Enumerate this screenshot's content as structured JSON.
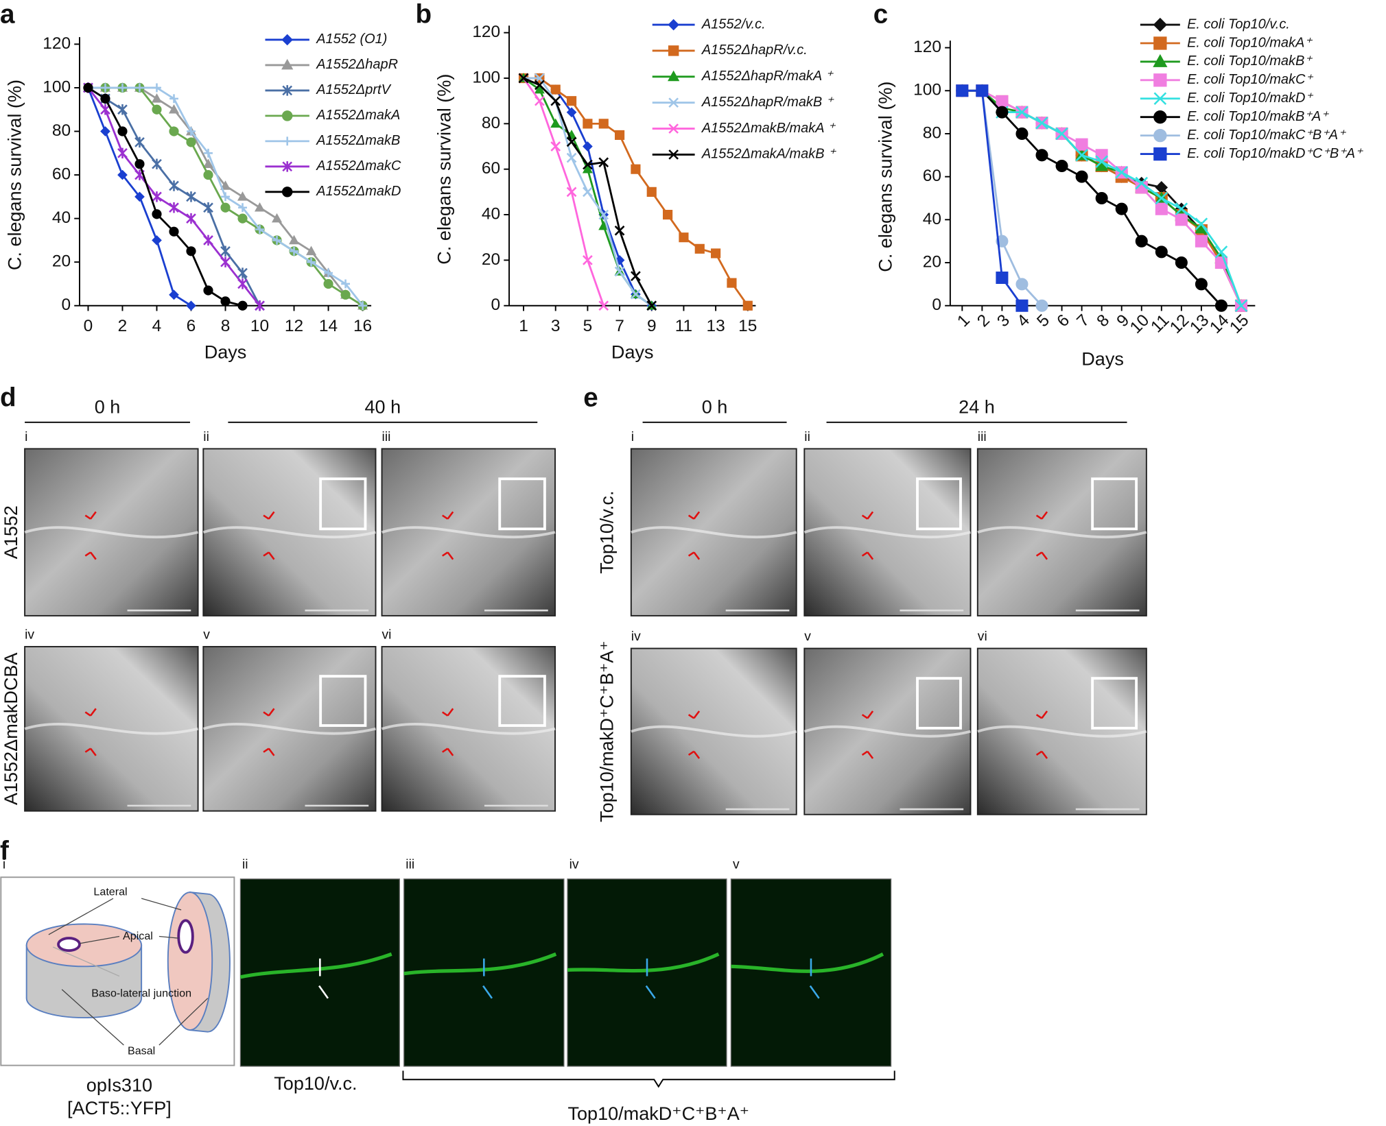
{
  "chart_data": [
    {
      "type": "line",
      "label": "a",
      "xlabel": "Days",
      "ylabel": "C. elegans survival (%)",
      "xlim": [
        -0.5,
        16.5
      ],
      "ylim": [
        0,
        120
      ],
      "xticks": [
        0,
        2,
        4,
        6,
        8,
        10,
        12,
        14,
        16
      ],
      "yticks": [
        0,
        20,
        40,
        60,
        80,
        100,
        120
      ],
      "series": [
        {
          "name": "A1552 (O1)",
          "color": "#1a3fd0",
          "marker": "diamond",
          "x": [
            0,
            1,
            2,
            3,
            4,
            5,
            6
          ],
          "values": [
            100,
            80,
            60,
            50,
            30,
            5,
            0
          ]
        },
        {
          "name": "A1552ΔhapR",
          "color": "#999999",
          "marker": "triangle",
          "x": [
            0,
            1,
            2,
            3,
            4,
            5,
            6,
            7,
            8,
            9,
            10,
            11,
            12,
            13,
            14,
            15,
            16
          ],
          "values": [
            100,
            100,
            100,
            100,
            95,
            90,
            80,
            65,
            55,
            50,
            45,
            40,
            30,
            25,
            15,
            5,
            0
          ]
        },
        {
          "name": "A1552ΔprtV",
          "color": "#4a6fa5",
          "marker": "star",
          "x": [
            0,
            1,
            2,
            3,
            4,
            5,
            6,
            7,
            8,
            9,
            10
          ],
          "values": [
            100,
            95,
            90,
            75,
            65,
            55,
            50,
            45,
            25,
            15,
            0
          ]
        },
        {
          "name": "A1552ΔmakA",
          "color": "#6aa84f",
          "marker": "circle",
          "x": [
            0,
            1,
            2,
            3,
            4,
            5,
            6,
            7,
            8,
            9,
            10,
            11,
            12,
            13,
            14,
            15,
            16
          ],
          "values": [
            100,
            100,
            100,
            100,
            90,
            80,
            75,
            60,
            45,
            40,
            35,
            30,
            25,
            20,
            10,
            5,
            0
          ]
        },
        {
          "name": "A1552ΔmakB",
          "color": "#9fc5e8",
          "marker": "plus",
          "x": [
            0,
            1,
            2,
            3,
            4,
            5,
            6,
            7,
            8,
            9,
            10,
            11,
            12,
            13,
            14,
            15,
            16
          ],
          "values": [
            100,
            100,
            100,
            100,
            100,
            95,
            80,
            70,
            50,
            45,
            35,
            30,
            25,
            20,
            15,
            10,
            0
          ]
        },
        {
          "name": "A1552ΔmakC",
          "color": "#9b30d0",
          "marker": "star",
          "x": [
            0,
            1,
            2,
            3,
            4,
            5,
            6,
            7,
            8,
            9,
            10
          ],
          "values": [
            100,
            90,
            70,
            60,
            50,
            45,
            40,
            30,
            20,
            10,
            0
          ]
        },
        {
          "name": "A1552ΔmakD",
          "color": "#000000",
          "marker": "circle",
          "x": [
            0,
            1,
            2,
            3,
            4,
            5,
            6,
            7,
            8,
            9
          ],
          "values": [
            100,
            95,
            80,
            65,
            42,
            34,
            25,
            7,
            2,
            0
          ]
        }
      ]
    },
    {
      "type": "line",
      "label": "b",
      "xlabel": "Days",
      "ylabel": "C. elegans survival (%)",
      "xlim": [
        0.1,
        15.5
      ],
      "ylim": [
        0,
        120
      ],
      "xticks": [
        1,
        3,
        5,
        7,
        9,
        11,
        13,
        15
      ],
      "yticks": [
        0,
        20,
        40,
        60,
        80,
        100,
        120
      ],
      "series": [
        {
          "name": "A1552/v.c.",
          "color": "#1a3fd0",
          "marker": "diamond",
          "x": [
            1,
            2,
            3,
            4,
            5,
            6,
            7,
            8,
            9
          ],
          "values": [
            100,
            100,
            95,
            85,
            70,
            40,
            20,
            5,
            0
          ]
        },
        {
          "name": "A1552ΔhapR/v.c.",
          "color": "#d2691e",
          "marker": "square",
          "x": [
            1,
            2,
            3,
            4,
            5,
            6,
            7,
            8,
            9,
            10,
            11,
            12,
            13,
            14,
            15
          ],
          "values": [
            100,
            100,
            95,
            90,
            80,
            80,
            75,
            60,
            50,
            40,
            30,
            25,
            23,
            10,
            0
          ]
        },
        {
          "name": "A1552ΔhapR/makA ⁺",
          "color": "#1e9a1e",
          "marker": "triangle",
          "x": [
            1,
            2,
            3,
            4,
            5,
            6,
            7,
            8,
            9
          ],
          "values": [
            100,
            95,
            80,
            75,
            60,
            35,
            15,
            5,
            0
          ]
        },
        {
          "name": "A1552ΔhapR/makB ⁺",
          "color": "#9fc5e8",
          "marker": "x",
          "x": [
            1,
            2,
            3,
            4,
            5,
            6,
            7,
            8,
            9
          ],
          "values": [
            100,
            100,
            90,
            65,
            50,
            40,
            15,
            5,
            0
          ]
        },
        {
          "name": "A1552ΔmakB/makA ⁺",
          "color": "#ff66dd",
          "marker": "x",
          "x": [
            1,
            2,
            3,
            4,
            5,
            6
          ],
          "values": [
            100,
            90,
            70,
            50,
            20,
            0
          ]
        },
        {
          "name": "A1552ΔmakA/makB ⁺",
          "color": "#000000",
          "marker": "x",
          "x": [
            1,
            2,
            3,
            4,
            5,
            6,
            7,
            8,
            9
          ],
          "values": [
            100,
            97,
            90,
            72,
            62,
            63,
            33,
            13,
            0
          ]
        }
      ]
    },
    {
      "type": "line",
      "label": "c",
      "xlabel": "Days",
      "ylabel": "C. elegans survival (%)",
      "xtick_rotation": -45,
      "xlim": [
        0.4,
        15.7
      ],
      "ylim": [
        0,
        120
      ],
      "xticks": [
        1,
        2,
        3,
        4,
        5,
        6,
        7,
        8,
        9,
        10,
        11,
        12,
        13,
        14,
        15
      ],
      "yticks": [
        0,
        20,
        40,
        60,
        80,
        100,
        120
      ],
      "series": [
        {
          "name": "E. coli Top10/v.c.",
          "color": "#111111",
          "marker": "diamond",
          "x": [
            1,
            2,
            3,
            4,
            5,
            6,
            7,
            8,
            9,
            10,
            11,
            12,
            13,
            14,
            15
          ],
          "values": [
            100,
            100,
            90,
            90,
            85,
            80,
            70,
            65,
            60,
            57,
            55,
            45,
            35,
            20,
            0
          ]
        },
        {
          "name": "E. coli Top10/makA⁺",
          "color": "#d2691e",
          "marker": "square",
          "x": [
            1,
            2,
            3,
            4,
            5,
            6,
            7,
            8,
            9,
            10,
            11,
            12,
            13,
            14,
            15
          ],
          "values": [
            100,
            100,
            95,
            90,
            85,
            80,
            70,
            65,
            60,
            55,
            50,
            42,
            35,
            20,
            0
          ]
        },
        {
          "name": "E. coli Top10/makB⁺",
          "color": "#1e9a1e",
          "marker": "triangle",
          "x": [
            1,
            2,
            3,
            4,
            5,
            6,
            7,
            8,
            9,
            10,
            11,
            12,
            13,
            14,
            15
          ],
          "values": [
            100,
            100,
            92,
            90,
            85,
            80,
            70,
            65,
            62,
            55,
            50,
            42,
            36,
            22,
            0
          ]
        },
        {
          "name": "E. coli Top10/makC⁺",
          "color": "#f07ee0",
          "marker": "square",
          "x": [
            1,
            2,
            3,
            4,
            5,
            6,
            7,
            8,
            9,
            10,
            11,
            12,
            13,
            14,
            15
          ],
          "values": [
            100,
            100,
            95,
            90,
            85,
            80,
            75,
            70,
            62,
            55,
            45,
            40,
            30,
            20,
            0
          ]
        },
        {
          "name": "E. coli Top10/makD⁺",
          "color": "#33e0e0",
          "marker": "x",
          "x": [
            1,
            2,
            3,
            4,
            5,
            6,
            7,
            8,
            9,
            10,
            11,
            12,
            13,
            14,
            15
          ],
          "values": [
            100,
            100,
            90,
            90,
            85,
            80,
            70,
            67,
            62,
            57,
            50,
            45,
            38,
            25,
            0
          ]
        },
        {
          "name": "E. coli Top10/makB⁺A⁺",
          "color": "#000000",
          "marker": "circle",
          "x": [
            1,
            2,
            3,
            4,
            5,
            6,
            7,
            8,
            9,
            10,
            11,
            12,
            13,
            14
          ],
          "values": [
            100,
            100,
            90,
            80,
            70,
            65,
            60,
            50,
            45,
            30,
            25,
            20,
            10,
            0
          ]
        },
        {
          "name": "E. coli Top10/makC⁺B⁺A⁺",
          "color": "#9fbde0",
          "marker": "circle",
          "x": [
            1,
            2,
            3,
            4,
            5
          ],
          "values": [
            100,
            100,
            30,
            10,
            0
          ]
        },
        {
          "name": "E. coli Top10/makD⁺C⁺B⁺A⁺",
          "color": "#1a3fd0",
          "marker": "square",
          "x": [
            1,
            2,
            3,
            4
          ],
          "values": [
            100,
            100,
            13,
            0
          ]
        }
      ]
    }
  ],
  "panels": {
    "d": {
      "label": "d",
      "time_labels": [
        "0 h",
        "40 h"
      ],
      "subpanels": [
        "i",
        "ii",
        "iii",
        "iv",
        "v",
        "vi"
      ],
      "row_labels": [
        "A1552",
        "A1552ΔmakDCBA"
      ]
    },
    "e": {
      "label": "e",
      "time_labels": [
        "0 h",
        "24 h"
      ],
      "subpanels": [
        "i",
        "ii",
        "iii",
        "iv",
        "v",
        "vi"
      ],
      "row_labels": [
        "Top10/v.c.",
        "Top10/makD⁺C⁺B⁺A⁺"
      ]
    },
    "f": {
      "label": "f",
      "subpanels": [
        "i",
        "ii",
        "iii",
        "iv",
        "v"
      ],
      "diagram_labels": [
        "Lateral",
        "Apical",
        "Baso-lateral junction",
        "Basal"
      ],
      "captions": [
        "opIs310",
        "[ACT5::YFP]",
        "Top10/v.c.",
        "Top10/makD⁺C⁺B⁺A⁺"
      ]
    }
  }
}
